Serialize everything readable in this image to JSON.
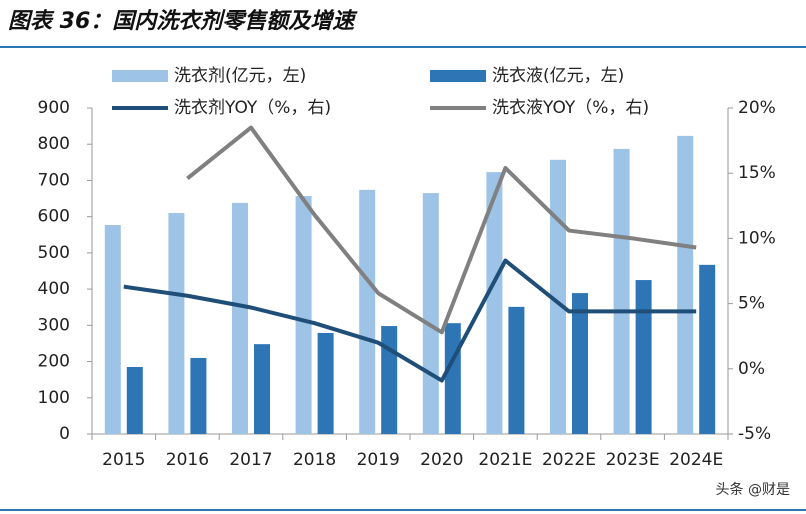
{
  "chart_data": {
    "type": "bar",
    "title": "图表 36：国内洗衣剂零售额及增速",
    "watermark": "头条 @财是",
    "categories": [
      "2015",
      "2016",
      "2017",
      "2018",
      "2019",
      "2020",
      "2021E",
      "2022E",
      "2023E",
      "2024E"
    ],
    "series": [
      {
        "name": "洗衣剂(亿元，左)",
        "type": "bar",
        "color": "#9dc3e6",
        "values": [
          577,
          610,
          638,
          657,
          674,
          665,
          723,
          757,
          787,
          823
        ]
      },
      {
        "name": "洗衣液(亿元，左)",
        "type": "bar",
        "color": "#2e75b6",
        "values": [
          185,
          210,
          248,
          279,
          298,
          306,
          351,
          389,
          425,
          467
        ]
      },
      {
        "name": "洗衣剂YOY（%，右)",
        "type": "line",
        "axis": "y2",
        "color": "#1f4e79",
        "values": [
          6.3,
          5.6,
          4.7,
          3.5,
          2.0,
          -0.9,
          8.3,
          4.4,
          4.4,
          4.4
        ]
      },
      {
        "name": "洗衣液YOY（%，右)",
        "type": "line",
        "axis": "y2",
        "color": "#808080",
        "values": [
          null,
          14.6,
          18.5,
          11.8,
          5.8,
          2.8,
          15.4,
          10.6,
          10.0,
          9.3
        ]
      }
    ],
    "ylim": [
      0,
      900
    ],
    "yticks": [
      0,
      100,
      200,
      300,
      400,
      500,
      600,
      700,
      800,
      900
    ],
    "y2lim": [
      -5,
      20
    ],
    "y2ticks": [
      {
        "value": -5,
        "label": "-5%"
      },
      {
        "value": 0,
        "label": "0%"
      },
      {
        "value": 5,
        "label": "5%"
      },
      {
        "value": 10,
        "label": "10%"
      },
      {
        "value": 15,
        "label": "15%"
      },
      {
        "value": 20,
        "label": "20%"
      }
    ],
    "grid": false
  }
}
